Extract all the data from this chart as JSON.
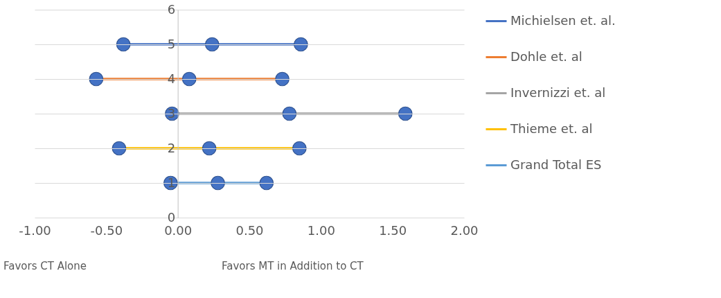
{
  "chart_data": {
    "type": "line",
    "marker": "circle",
    "line_style": "solid",
    "grid": "y",
    "legend": "right",
    "xlim": [
      -1,
      2
    ],
    "xticks": [
      {
        "value": -1,
        "label": "-1.00"
      },
      {
        "value": -0.5,
        "label": "-0.50"
      },
      {
        "value": 0,
        "label": "0.00"
      },
      {
        "value": 0.5,
        "label": "0.50"
      },
      {
        "value": 1,
        "label": "1.00"
      },
      {
        "value": 1.5,
        "label": "1.50"
      },
      {
        "value": 2,
        "label": "2.00"
      }
    ],
    "ylim": [
      0,
      6
    ],
    "yticks": [
      0,
      1,
      2,
      3,
      4,
      5,
      6
    ],
    "annotations": [
      "Favors CT Alone",
      "Favors MT in Addition to CT"
    ],
    "series": [
      {
        "name": "Michielsen et. al.",
        "color": "#4472c4",
        "x": [
          -0.38,
          0.24,
          0.86
        ],
        "values": [
          5,
          5,
          5
        ]
      },
      {
        "name": "Dohle et. al",
        "color": "#ed7d31",
        "x": [
          -0.57,
          0.08,
          0.73
        ],
        "values": [
          4,
          4,
          4
        ]
      },
      {
        "name": "Invernizzi et. al",
        "color": "#a5a5a5",
        "x": [
          -0.04,
          0.78,
          1.59
        ],
        "values": [
          3,
          3,
          3
        ]
      },
      {
        "name": "Thieme et. al",
        "color": "#ffc000",
        "x": [
          -0.41,
          0.22,
          0.85
        ],
        "values": [
          2,
          2,
          2
        ]
      },
      {
        "name": "Grand Total ES",
        "color": "#5b9bd5",
        "x": [
          -0.05,
          0.28,
          0.62
        ],
        "values": [
          1,
          1,
          1
        ]
      }
    ]
  }
}
